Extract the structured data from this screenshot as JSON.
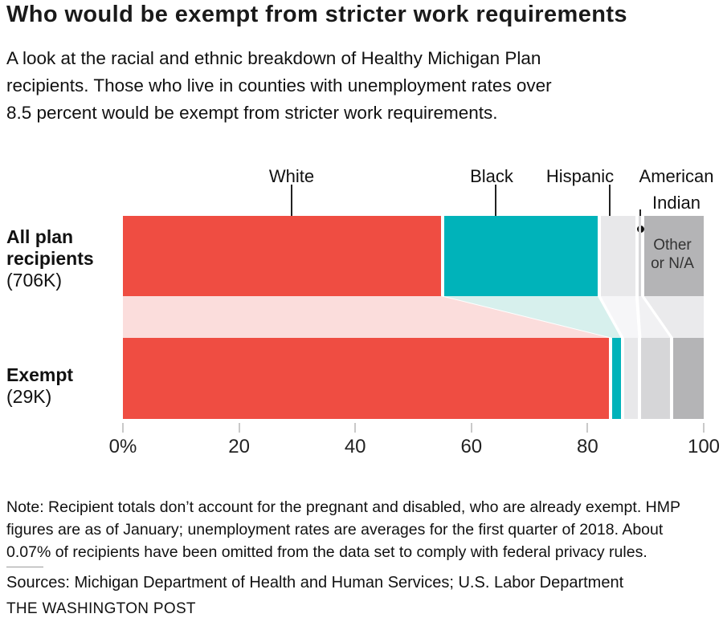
{
  "header": {
    "title": "Who would be exempt from stricter work requirements",
    "subtitle_lines": [
      "A look at the racial and ethnic breakdown of Healthy Michigan Plan",
      "recipients. Those who live in counties with unemployment rates over",
      "8.5 percent would be exempt from stricter work requirements."
    ]
  },
  "chart_data": {
    "type": "bar",
    "subtype": "horizontal-stacked-100pct-with-flow",
    "categories": [
      "White",
      "Black",
      "Hispanic",
      "American Indian",
      "Other or N/A"
    ],
    "colors": [
      "#ef4d42",
      "#00b3ba",
      "#e8e8ea",
      "#d6d6d8",
      "#b4b4b6"
    ],
    "flow_colors": [
      "#fbdddc",
      "#d7f0ed",
      "#f6f6f8",
      "#f1f1f3",
      "#eaeaec"
    ],
    "xlim": [
      0,
      100
    ],
    "x_ticks": [
      {
        "value": 0,
        "label": "0%"
      },
      {
        "value": 20,
        "label": "20"
      },
      {
        "value": 40,
        "label": "40"
      },
      {
        "value": 60,
        "label": "60"
      },
      {
        "value": 80,
        "label": "80"
      },
      {
        "value": 100,
        "label": "100"
      }
    ],
    "rows": [
      {
        "label_lines": [
          "All plan",
          "recipients"
        ],
        "sublabel": "(706K)",
        "values": [
          55,
          27,
          6.5,
          1,
          10.5
        ]
      },
      {
        "label_lines": [
          "Exempt"
        ],
        "sublabel": "(29K)",
        "values": [
          84,
          2,
          3,
          5.5,
          5.5
        ]
      }
    ],
    "annotations": [
      {
        "label": "White"
      },
      {
        "label": "Black"
      },
      {
        "label": "Hispanic"
      },
      {
        "label": "American Indian",
        "lines": [
          "American",
          "Indian"
        ]
      }
    ],
    "other_segment_label_lines": [
      "Other",
      "or N/A"
    ]
  },
  "footer": {
    "note_lines": [
      "Note: Recipient totals don’t account for the pregnant and disabled, who are already exempt. HMP",
      "figures are as of January; unemployment rates are averages for the first quarter of 2018. About",
      "0.07% of recipients have been omitted from the data set to comply with federal privacy rules."
    ],
    "sources": "Sources: Michigan Department of Health and Human Services; U.S. Labor Department",
    "credit": "THE WASHINGTON POST"
  }
}
